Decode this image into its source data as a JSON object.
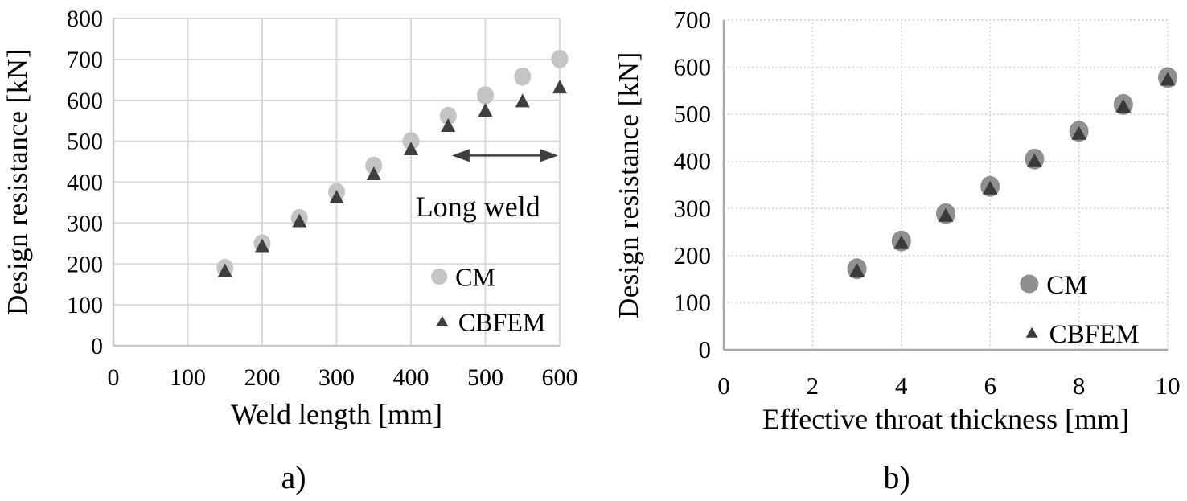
{
  "page": {
    "background": "#ffffff",
    "text_color": "#000000"
  },
  "chart_data": [
    {
      "id": "a",
      "type": "scatter",
      "caption": "a)",
      "xlabel": "Weld length [mm]",
      "ylabel": "Design resistance [kN]",
      "xlim": [
        0,
        600
      ],
      "ylim": [
        0,
        800
      ],
      "xticks": [
        0,
        100,
        200,
        300,
        400,
        500,
        600
      ],
      "yticks": [
        0,
        100,
        200,
        300,
        400,
        500,
        600,
        700,
        800
      ],
      "grid": "solid",
      "grid_color": "#d9d9d9",
      "x": [
        150,
        200,
        250,
        300,
        350,
        400,
        450,
        500,
        550,
        600
      ],
      "series": [
        {
          "name": "CM",
          "marker": "circle",
          "color": "#c4c4c4",
          "values": [
            190,
            250,
            312,
            376,
            440,
            500,
            562,
            612,
            658,
            701
          ]
        },
        {
          "name": "CBFEM",
          "marker": "triangle",
          "color": "#3f3f3f",
          "values": [
            183,
            244,
            305,
            363,
            420,
            481,
            538,
            575,
            598,
            632
          ]
        }
      ],
      "legend_position": "inside bottom-right",
      "annotation": {
        "text": "Long weld",
        "arrow_from_x": 455,
        "arrow_to_x": 600,
        "arrow_y": 465,
        "text_x": 490,
        "text_y": 340,
        "color": "#3f3f3f"
      }
    },
    {
      "id": "b",
      "type": "scatter",
      "caption": "b)",
      "xlabel": "Effective throat thickness [mm]",
      "ylabel": "Design resistance [kN]",
      "xlim": [
        0,
        10
      ],
      "ylim": [
        0,
        700
      ],
      "xticks": [
        0,
        2,
        4,
        6,
        8,
        10
      ],
      "yticks": [
        0,
        100,
        200,
        300,
        400,
        500,
        600,
        700
      ],
      "grid": "dotted",
      "grid_color": "#d9d9d9",
      "x": [
        3,
        4,
        5,
        6,
        7,
        8,
        9,
        10
      ],
      "series": [
        {
          "name": "CM",
          "marker": "circle",
          "color": "#8f8f8f",
          "values": [
            172,
            231,
            289,
            347,
            405,
            464,
            521,
            578
          ]
        },
        {
          "name": "CBFEM",
          "marker": "triangle",
          "color": "#3a3a3a",
          "values": [
            168,
            227,
            285,
            343,
            401,
            459,
            517,
            574
          ]
        }
      ],
      "legend_position": "inside bottom-right"
    }
  ]
}
